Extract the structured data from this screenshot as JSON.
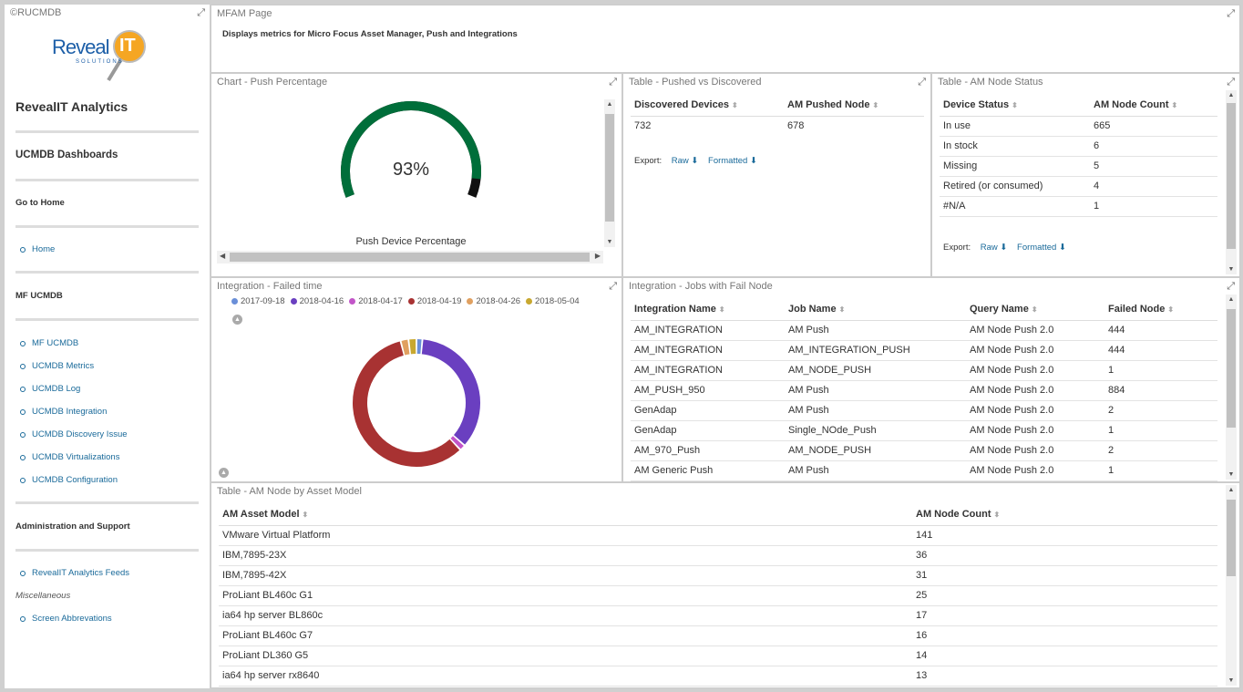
{
  "sidebar": {
    "title": "©RUCMDB",
    "logo_text": "Reveal",
    "logo_letter": "IT",
    "logo_sub": "SOLUTIONS",
    "analytics_title": "RevealIT Analytics",
    "dashboards_title": "UCMDB Dashboards",
    "goto_home": "Go to Home",
    "home": "Home",
    "mf_ucmdb": "MF UCMDB",
    "links": [
      "MF UCMDB",
      "UCMDB Metrics",
      "UCMDB Log",
      "UCMDB Integration",
      "UCMDB Discovery Issue",
      "UCMDB Virtualizations",
      "UCMDB Configuration"
    ],
    "admin": "Administration and Support",
    "feeds": "RevealIT Analytics Feeds",
    "misc": "Miscellaneous",
    "abbrev": "Screen Abbrevations"
  },
  "header": {
    "title": "MFAM Page",
    "description": "Displays metrics for Micro Focus Asset Manager, Push and Integrations"
  },
  "push_chart": {
    "title": "Chart - Push Percentage",
    "value_label": "93%",
    "caption": "Push Device Percentage",
    "colors": {
      "fill": "#006e3a",
      "rest": "#111111"
    }
  },
  "chart_data": {
    "type": "pie",
    "title": "",
    "categories": [
      "2017-09-18",
      "2018-04-16",
      "2018-04-17",
      "2018-04-19",
      "2018-04-26",
      "2018-05-04"
    ],
    "values": [
      1.5,
      35,
      1.5,
      58,
      2,
      2
    ],
    "colors": [
      "#6a8fd8",
      "#6a3fc0",
      "#c255c8",
      "#a83232",
      "#e0a060",
      "#c8a830"
    ]
  },
  "donut": {
    "title": "Integration - Failed time"
  },
  "pushed": {
    "title": "Table - Pushed vs Discovered",
    "headers": [
      "Discovered Devices",
      "AM Pushed Node"
    ],
    "rows": [
      [
        "732",
        "678"
      ]
    ],
    "export_label": "Export:",
    "raw": "Raw",
    "formatted": "Formatted"
  },
  "node_status": {
    "title": "Table - AM Node Status",
    "headers": [
      "Device Status",
      "AM Node Count"
    ],
    "rows": [
      [
        "In use",
        "665"
      ],
      [
        "In stock",
        "6"
      ],
      [
        "Missing",
        "5"
      ],
      [
        "Retired (or consumed)",
        "4"
      ],
      [
        "#N/A",
        "1"
      ]
    ],
    "export_label": "Export:",
    "raw": "Raw",
    "formatted": "Formatted"
  },
  "jobs": {
    "title": "Integration - Jobs with Fail Node",
    "headers": [
      "Integration Name",
      "Job Name",
      "Query Name",
      "Failed Node"
    ],
    "rows": [
      [
        "AM_INTEGRATION",
        "AM Push",
        "AM Node Push 2.0",
        "444"
      ],
      [
        "AM_INTEGRATION",
        "AM_INTEGRATION_PUSH",
        "AM Node Push 2.0",
        "444"
      ],
      [
        "AM_INTEGRATION",
        "AM_NODE_PUSH",
        "AM Node Push 2.0",
        "1"
      ],
      [
        "AM_PUSH_950",
        "AM Push",
        "AM Node Push 2.0",
        "884"
      ],
      [
        "GenAdap",
        "AM Push",
        "AM Node Push 2.0",
        "2"
      ],
      [
        "GenAdap",
        "Single_NOde_Push",
        "AM Node Push 2.0",
        "1"
      ],
      [
        "AM_970_Push",
        "AM_NODE_PUSH",
        "AM Node Push 2.0",
        "2"
      ],
      [
        "AM Generic Push",
        "AM Push",
        "AM Node Push 2.0",
        "1"
      ]
    ]
  },
  "asset_model": {
    "title": "Table - AM Node by Asset Model",
    "headers": [
      "AM Asset Model",
      "AM Node Count"
    ],
    "rows": [
      [
        "VMware Virtual Platform",
        "141"
      ],
      [
        "IBM,7895-23X",
        "36"
      ],
      [
        "IBM,7895-42X",
        "31"
      ],
      [
        "ProLiant BL460c G1",
        "25"
      ],
      [
        "ia64 hp server BL860c",
        "17"
      ],
      [
        "ProLiant BL460c G7",
        "16"
      ],
      [
        "ProLiant DL360 G5",
        "14"
      ],
      [
        "ia64 hp server rx8640",
        "13"
      ]
    ]
  }
}
